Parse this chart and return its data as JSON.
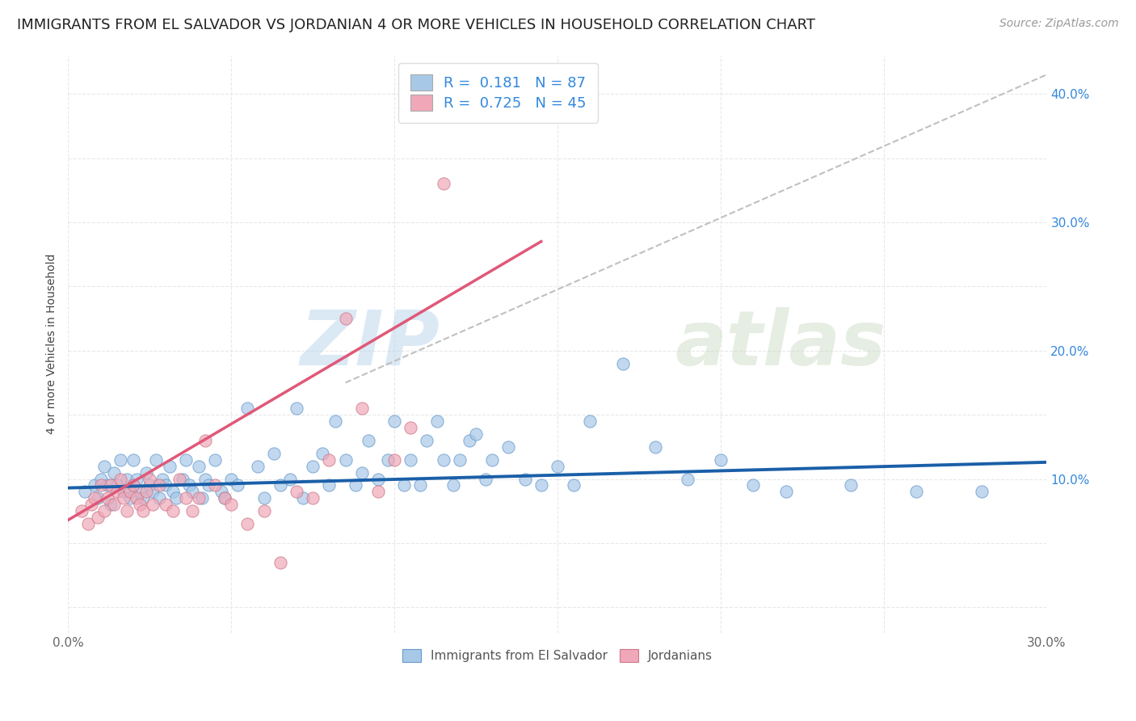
{
  "title": "IMMIGRANTS FROM EL SALVADOR VS JORDANIAN 4 OR MORE VEHICLES IN HOUSEHOLD CORRELATION CHART",
  "source": "Source: ZipAtlas.com",
  "ylabel": "4 or more Vehicles in Household",
  "watermark_zip": "ZIP",
  "watermark_atlas": "atlas",
  "xlim": [
    0.0,
    0.3
  ],
  "ylim": [
    -0.02,
    0.43
  ],
  "x_ticks": [
    0.0,
    0.05,
    0.1,
    0.15,
    0.2,
    0.25,
    0.3
  ],
  "x_tick_labels": [
    "0.0%",
    "",
    "",
    "",
    "",
    "",
    "30.0%"
  ],
  "y_ticks_right": [
    0.1,
    0.2,
    0.3,
    0.4
  ],
  "y_tick_labels_right": [
    "10.0%",
    "20.0%",
    "30.0%",
    "40.0%"
  ],
  "legend_blue_r": "0.181",
  "legend_blue_n": "87",
  "legend_pink_r": "0.725",
  "legend_pink_n": "45",
  "blue_color": "#a8c8e8",
  "pink_color": "#f0a8b8",
  "blue_line_color": "#1a5fa8",
  "pink_line_color": "#e05878",
  "dashed_line_color": "#c0c0c0",
  "legend_text_color": "#3388dd",
  "grid_color": "#e8e8e8",
  "title_fontsize": 13,
  "source_fontsize": 10,
  "axis_label_fontsize": 10,
  "tick_fontsize": 11,
  "legend_fontsize": 13,
  "scatter_size": 120,
  "blue_scatter_x": [
    0.005,
    0.008,
    0.009,
    0.01,
    0.011,
    0.012,
    0.013,
    0.014,
    0.015,
    0.016,
    0.017,
    0.018,
    0.019,
    0.02,
    0.02,
    0.021,
    0.022,
    0.023,
    0.024,
    0.025,
    0.026,
    0.027,
    0.028,
    0.029,
    0.03,
    0.031,
    0.032,
    0.033,
    0.035,
    0.036,
    0.037,
    0.038,
    0.04,
    0.041,
    0.042,
    0.043,
    0.045,
    0.047,
    0.048,
    0.05,
    0.052,
    0.055,
    0.058,
    0.06,
    0.063,
    0.065,
    0.068,
    0.07,
    0.072,
    0.075,
    0.078,
    0.08,
    0.082,
    0.085,
    0.088,
    0.09,
    0.092,
    0.095,
    0.098,
    0.1,
    0.103,
    0.105,
    0.108,
    0.11,
    0.113,
    0.115,
    0.118,
    0.12,
    0.123,
    0.125,
    0.128,
    0.13,
    0.135,
    0.14,
    0.145,
    0.15,
    0.155,
    0.16,
    0.17,
    0.18,
    0.19,
    0.2,
    0.21,
    0.22,
    0.24,
    0.26,
    0.28
  ],
  "blue_scatter_y": [
    0.09,
    0.095,
    0.085,
    0.1,
    0.11,
    0.095,
    0.08,
    0.105,
    0.095,
    0.115,
    0.09,
    0.1,
    0.085,
    0.095,
    0.115,
    0.1,
    0.09,
    0.085,
    0.105,
    0.095,
    0.09,
    0.115,
    0.085,
    0.1,
    0.095,
    0.11,
    0.09,
    0.085,
    0.1,
    0.115,
    0.095,
    0.09,
    0.11,
    0.085,
    0.1,
    0.095,
    0.115,
    0.09,
    0.085,
    0.1,
    0.095,
    0.155,
    0.11,
    0.085,
    0.12,
    0.095,
    0.1,
    0.155,
    0.085,
    0.11,
    0.12,
    0.095,
    0.145,
    0.115,
    0.095,
    0.105,
    0.13,
    0.1,
    0.115,
    0.145,
    0.095,
    0.115,
    0.095,
    0.13,
    0.145,
    0.115,
    0.095,
    0.115,
    0.13,
    0.135,
    0.1,
    0.115,
    0.125,
    0.1,
    0.095,
    0.11,
    0.095,
    0.145,
    0.19,
    0.125,
    0.1,
    0.115,
    0.095,
    0.09,
    0.095,
    0.09,
    0.09
  ],
  "pink_scatter_x": [
    0.004,
    0.006,
    0.007,
    0.008,
    0.009,
    0.01,
    0.011,
    0.012,
    0.013,
    0.014,
    0.015,
    0.016,
    0.017,
    0.018,
    0.019,
    0.02,
    0.021,
    0.022,
    0.023,
    0.024,
    0.025,
    0.026,
    0.028,
    0.03,
    0.032,
    0.034,
    0.036,
    0.038,
    0.04,
    0.042,
    0.045,
    0.048,
    0.05,
    0.055,
    0.06,
    0.065,
    0.07,
    0.075,
    0.08,
    0.085,
    0.09,
    0.095,
    0.1,
    0.105,
    0.115
  ],
  "pink_scatter_y": [
    0.075,
    0.065,
    0.08,
    0.085,
    0.07,
    0.095,
    0.075,
    0.085,
    0.095,
    0.08,
    0.09,
    0.1,
    0.085,
    0.075,
    0.09,
    0.095,
    0.085,
    0.08,
    0.075,
    0.09,
    0.1,
    0.08,
    0.095,
    0.08,
    0.075,
    0.1,
    0.085,
    0.075,
    0.085,
    0.13,
    0.095,
    0.085,
    0.08,
    0.065,
    0.075,
    0.035,
    0.09,
    0.085,
    0.115,
    0.225,
    0.155,
    0.09,
    0.115,
    0.14,
    0.33
  ],
  "blue_line_x": [
    0.0,
    0.3
  ],
  "blue_line_y": [
    0.093,
    0.113
  ],
  "pink_line_x": [
    0.0,
    0.145
  ],
  "pink_line_y": [
    0.068,
    0.285
  ],
  "dashed_line_x": [
    0.085,
    0.3
  ],
  "dashed_line_y": [
    0.175,
    0.415
  ]
}
